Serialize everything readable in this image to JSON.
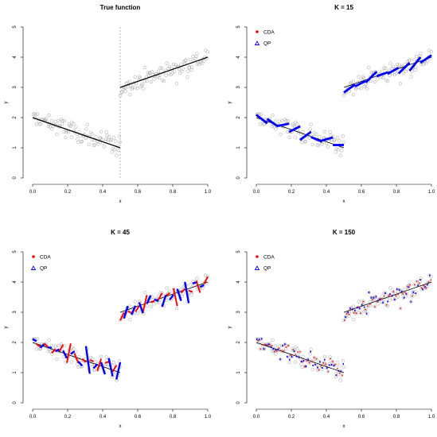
{
  "colors": {
    "points": "#a6a6a6",
    "true_line": "#000000",
    "cda": "#ff0000",
    "qp": "#0000ff",
    "cutoff": "#a6a6a6",
    "axes": "#000000"
  },
  "legend_labels": {
    "cda": "CDA",
    "qp": "QP"
  },
  "chart_data": [
    {
      "type": "scatter",
      "title": "True function",
      "xlabel": "x",
      "ylabel": "y",
      "xlim": [
        0,
        1
      ],
      "ylim": [
        0,
        5
      ],
      "x_ticks": [
        "0.0",
        "0.2",
        "0.4",
        "0.6",
        "0.8",
        "1.0"
      ],
      "y_ticks": [
        "0",
        "1",
        "2",
        "3",
        "4",
        "5"
      ],
      "grid": false,
      "legend": false,
      "cutoff": 0.5,
      "true_function": [
        {
          "x": [
            0,
            0.5
          ],
          "y": [
            2.0,
            1.0
          ]
        },
        {
          "x": [
            0.5,
            1.0
          ],
          "y": [
            3.0,
            4.0
          ]
        }
      ],
      "observations": "x uniform on [0, 1], y = true function + noise (sd ≈ 0.17)"
    },
    {
      "type": "scatter",
      "title": "K = 15",
      "xlabel": "x",
      "ylabel": "y",
      "xlim": [
        0,
        1
      ],
      "ylim": [
        0,
        5
      ],
      "x_ticks": [
        "0.0",
        "0.2",
        "0.4",
        "0.6",
        "0.8",
        "1.0"
      ],
      "y_ticks": [
        "0",
        "1",
        "2",
        "3",
        "4",
        "5"
      ],
      "grid": false,
      "legend": "top-left",
      "series": [
        {
          "name": "CDA",
          "segments": 15
        },
        {
          "name": "QP",
          "segments": 15
        }
      ]
    },
    {
      "type": "scatter",
      "title": "K = 45",
      "xlabel": "x",
      "ylabel": "y",
      "xlim": [
        0,
        1
      ],
      "ylim": [
        0,
        5
      ],
      "x_ticks": [
        "0.0",
        "0.2",
        "0.4",
        "0.6",
        "0.8",
        "1.0"
      ],
      "y_ticks": [
        "0",
        "1",
        "2",
        "3",
        "4",
        "5"
      ],
      "grid": false,
      "legend": "top-left",
      "series": [
        {
          "name": "CDA",
          "segments": 45
        },
        {
          "name": "QP",
          "segments": 45
        }
      ]
    },
    {
      "type": "scatter",
      "title": "K = 150",
      "xlabel": "x",
      "ylabel": "y",
      "xlim": [
        0,
        1
      ],
      "ylim": [
        0,
        5
      ],
      "x_ticks": [
        "0.0",
        "0.2",
        "0.4",
        "0.6",
        "0.8",
        "1.0"
      ],
      "y_ticks": [
        "0",
        "1",
        "2",
        "3",
        "4",
        "5"
      ],
      "grid": false,
      "legend": "top-left",
      "series": [
        {
          "name": "CDA",
          "segments": 150
        },
        {
          "name": "QP",
          "segments": 150
        }
      ]
    }
  ]
}
